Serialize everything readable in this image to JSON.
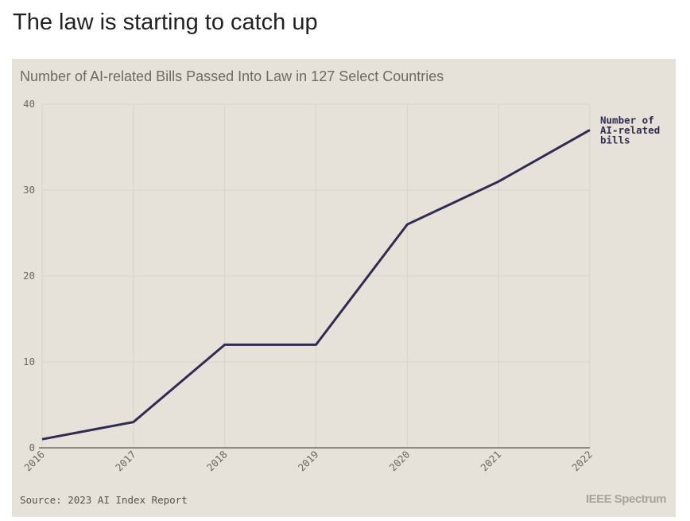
{
  "headline": "The law is starting to catch up",
  "brand": "IEEE Spectrum",
  "chart_data": {
    "type": "line",
    "title": "Number of AI-related Bills Passed Into Law in 127 Select Countries",
    "x": [
      "2016",
      "2017",
      "2018",
      "2019",
      "2020",
      "2021",
      "2022"
    ],
    "series": [
      {
        "name": "Number of AI-related bills",
        "label_lines": [
          "Number of",
          "AI-related",
          "bills"
        ],
        "values": [
          1,
          3,
          12,
          12,
          26,
          31,
          37
        ],
        "color": "#2f2b52"
      }
    ],
    "xlabel": "",
    "ylabel": "",
    "ylim": [
      0,
      40
    ],
    "yticks": [
      0,
      10,
      20,
      30,
      40
    ],
    "grid": true,
    "source": "Source: 2023 AI Index Report"
  }
}
